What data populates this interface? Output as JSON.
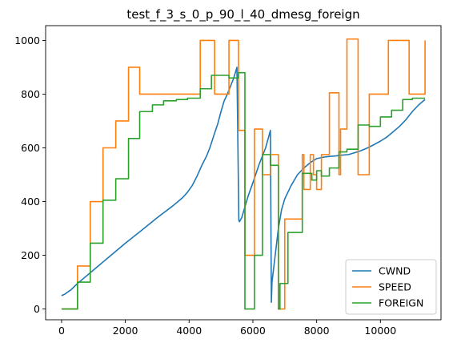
{
  "chart_data": {
    "type": "line",
    "title": "test_f_3_s_0_p_90_l_40_dmesg_foreign",
    "xlabel": "",
    "ylabel": "",
    "xlim": [
      -500,
      11900
    ],
    "ylim": [
      -40,
      1055
    ],
    "x_ticks": [
      0,
      2000,
      4000,
      6000,
      8000,
      10000
    ],
    "y_ticks": [
      0,
      200,
      400,
      600,
      800,
      1000
    ],
    "grid": false,
    "legend_position": "lower right",
    "series": [
      {
        "name": "CWND",
        "color": "#1f77b4",
        "x": [
          0,
          100,
          300,
          500,
          700,
          1000,
          1500,
          2000,
          2500,
          3000,
          3500,
          3800,
          3950,
          4100,
          4250,
          4400,
          4550,
          4650,
          4800,
          4900,
          5000,
          5100,
          5200,
          5300,
          5400,
          5500,
          5560,
          5580,
          5650,
          5750,
          5850,
          6000,
          6200,
          6400,
          6550,
          6580,
          6600,
          6700,
          6800,
          6900,
          7000,
          7200,
          7400,
          7600,
          7800,
          8000,
          8200,
          8400,
          8600,
          8800,
          9000,
          9200,
          9400,
          9600,
          9800,
          10000,
          10200,
          10400,
          10600,
          10800,
          11000,
          11200,
          11400
        ],
        "y": [
          50,
          55,
          72,
          95,
          115,
          145,
          195,
          245,
          292,
          340,
          385,
          415,
          435,
          460,
          495,
          535,
          570,
          600,
          655,
          690,
          735,
          775,
          800,
          830,
          860,
          900,
          330,
          325,
          340,
          380,
          420,
          470,
          540,
          600,
          665,
          25,
          100,
          200,
          300,
          370,
          410,
          460,
          500,
          525,
          545,
          560,
          565,
          568,
          570,
          573,
          575,
          582,
          590,
          600,
          612,
          625,
          640,
          660,
          680,
          705,
          735,
          760,
          780
        ]
      },
      {
        "name": "SPEED",
        "color": "#ff7f0e",
        "x": [
          0,
          500,
          500,
          900,
          900,
          1300,
          1300,
          1700,
          1700,
          2100,
          2100,
          2450,
          2450,
          4350,
          4350,
          4800,
          4800,
          5250,
          5250,
          5550,
          5550,
          5750,
          5750,
          6050,
          6050,
          6300,
          6300,
          6550,
          6550,
          6600,
          6600,
          6800,
          6800,
          7000,
          7000,
          7550,
          7550,
          7600,
          7600,
          7800,
          7800,
          7900,
          7900,
          8000,
          8000,
          8150,
          8150,
          8400,
          8400,
          8700,
          8700,
          8750,
          8750,
          8950,
          8950,
          9300,
          9300,
          9650,
          9650,
          10250,
          10250,
          10900,
          10900,
          11400,
          11400
        ],
        "y": [
          0,
          0,
          160,
          160,
          400,
          400,
          600,
          600,
          700,
          700,
          900,
          900,
          800,
          800,
          1000,
          1000,
          800,
          800,
          1000,
          1000,
          665,
          665,
          200,
          200,
          670,
          670,
          500,
          500,
          575,
          575,
          575,
          575,
          0,
          0,
          335,
          335,
          575,
          575,
          445,
          445,
          575,
          575,
          500,
          500,
          445,
          445,
          575,
          575,
          805,
          805,
          500,
          500,
          670,
          670,
          1005,
          1005,
          500,
          500,
          800,
          800,
          1000,
          1000,
          800,
          800,
          1000
        ]
      },
      {
        "name": "FOREIGN",
        "color": "#2ca02c",
        "x": [
          0,
          500,
          500,
          900,
          900,
          1300,
          1300,
          1700,
          1700,
          2100,
          2100,
          2450,
          2450,
          2850,
          2850,
          3200,
          3200,
          3600,
          3600,
          3950,
          3950,
          4350,
          4350,
          4700,
          4700,
          5250,
          5250,
          5550,
          5550,
          5750,
          5750,
          6050,
          6050,
          6300,
          6300,
          6550,
          6550,
          6800,
          6800,
          6850,
          6850,
          7100,
          7100,
          7550,
          7550,
          7850,
          7850,
          8000,
          8000,
          8150,
          8150,
          8400,
          8400,
          8700,
          8700,
          8950,
          8950,
          9300,
          9300,
          9650,
          9650,
          10000,
          10000,
          10350,
          10350,
          10700,
          10700,
          11000,
          11000,
          11400
        ],
        "y": [
          0,
          0,
          100,
          100,
          245,
          245,
          405,
          405,
          485,
          485,
          635,
          635,
          735,
          735,
          760,
          760,
          775,
          775,
          780,
          780,
          785,
          785,
          820,
          820,
          870,
          870,
          860,
          860,
          880,
          880,
          0,
          0,
          200,
          200,
          575,
          575,
          535,
          535,
          0,
          0,
          95,
          95,
          285,
          285,
          505,
          505,
          480,
          480,
          515,
          515,
          495,
          495,
          525,
          525,
          585,
          585,
          595,
          595,
          685,
          685,
          680,
          680,
          715,
          715,
          740,
          740,
          780,
          780,
          785,
          785
        ]
      }
    ]
  }
}
